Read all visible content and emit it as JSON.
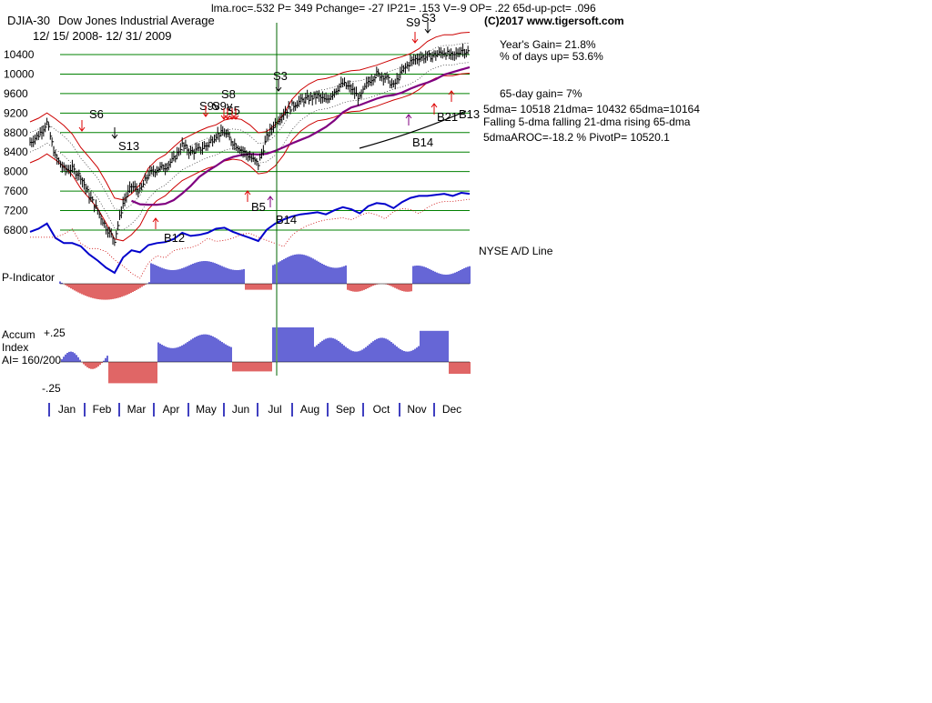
{
  "header": {
    "stats_line": "lma.roc=.532 P=   349 Pchange= -27 IP21= .153 V=-9 OP= .22 65d-up-pct= .096",
    "copyright": "(C)2017 www.tigersoft.com",
    "symbol": "DJIA-30",
    "name": "Dow Jones Industrial Average",
    "date_range": "12/ 15/ 2008- 12/ 31/ 2009"
  },
  "stats": {
    "years_gain": "Year's Gain= 21.8%",
    "pct_days_up": "% of days up= 53.6%",
    "gain_65day": "65-day gain= 7%",
    "ma_values": "5dma= 10518 21dma= 10432 65dma=10164",
    "ma_trend": "Falling 5-dma  falling 21-dma  rising 65-dma",
    "aroc_pivot": "5dmaAROC=-18.2 %  PivotP= 10520.1"
  },
  "panel_labels": {
    "nyse_ad": "NYSE A/D Line",
    "p_indicator": "P-Indicator",
    "accum_1": "Accum",
    "accum_2": "Index",
    "ai": "AI= 160/200",
    "accum_top": "+.25",
    "accum_bottom": "-.25"
  },
  "colors": {
    "price_bar": "#000000",
    "band_red": "#cc0000",
    "ma65_purple": "#800080",
    "ad_line": "#0000cc",
    "positive_hist": "#0000bb",
    "negative_hist": "#cc0000",
    "grid": "#008000",
    "signal_vertical": "#006600",
    "buy_arrow_red": "#dd0000",
    "buy_arrow_purple": "#800080"
  },
  "chart_data": {
    "type": "line",
    "title": "DJIA-30  Dow Jones Industrial Average",
    "y_ticks": [
      6800,
      7200,
      7600,
      8000,
      8400,
      8800,
      9200,
      9600,
      10000,
      10400
    ],
    "ylim": [
      6400,
      10900
    ],
    "months": [
      "Jan",
      "Feb",
      "Mar",
      "Apr",
      "May",
      "Jun",
      "Jul",
      "Aug",
      "Sep",
      "Oct",
      "Nov",
      "Dec"
    ],
    "series": [
      {
        "x": [
          "Dec 15",
          "Dec 31",
          "Jan 6",
          "Jan 15",
          "Jan 23",
          "Feb 2",
          "Feb 10",
          "Feb 18",
          "Feb 25",
          "Mar 3",
          "Mar 9",
          "Mar 16",
          "Mar 23",
          "Mar 31",
          "Apr 7",
          "Apr 15",
          "Apr 23",
          "May 1",
          "May 8",
          "May 15",
          "May 22",
          "May 29",
          "Jun 5",
          "Jun 12",
          "Jun 19",
          "Jun 26",
          "Jul 3",
          "Jul 10",
          "Jul 17",
          "Jul 24",
          "Jul 31",
          "Aug 7",
          "Aug 14",
          "Aug 21",
          "Aug 28",
          "Sep 4",
          "Sep 11",
          "Sep 18",
          "Sep 25",
          "Oct 2",
          "Oct 9",
          "Oct 16",
          "Oct 23",
          "Oct 30",
          "Nov 6",
          "Nov 13",
          "Nov 20",
          "Nov 27",
          "Dec 4",
          "Dec 11",
          "Dec 18",
          "Dec 24",
          "Dec 31"
        ],
        "values": [
          8600,
          8750,
          9000,
          8300,
          8050,
          8050,
          7900,
          7500,
          7200,
          6850,
          6600,
          7350,
          7700,
          7600,
          7950,
          8050,
          8100,
          8250,
          8550,
          8400,
          8450,
          8550,
          8750,
          8800,
          8600,
          8450,
          8300,
          8150,
          8700,
          9000,
          9200,
          9350,
          9450,
          9500,
          9550,
          9450,
          9650,
          9800,
          9700,
          9500,
          9850,
          10000,
          9950,
          9750,
          10050,
          10250,
          10350,
          10350,
          10400,
          10450,
          10350,
          10500,
          10450
        ]
      }
    ],
    "signals": [
      "S6",
      "S13",
      "B12",
      "S9v",
      "S8",
      "S9v",
      "S5",
      "B5",
      "B14",
      "S3",
      "B14",
      "S9",
      "S3",
      "B21",
      "B13"
    ]
  }
}
